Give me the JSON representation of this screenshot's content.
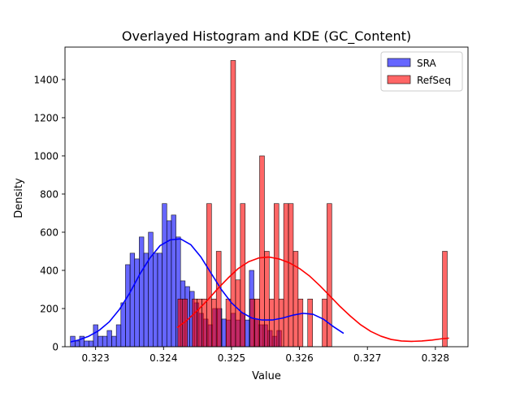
{
  "chart_data": {
    "type": "bar",
    "title": "Overlayed Histogram and KDE (GC_Content)",
    "xlabel": "Value",
    "ylabel": "Density",
    "xlim": [
      0.32255,
      0.32848
    ],
    "ylim": [
      0,
      1570
    ],
    "x_ticks": [
      0.323,
      0.324,
      0.325,
      0.326,
      0.327,
      0.328
    ],
    "x_tick_labels": [
      "0.323",
      "0.324",
      "0.325",
      "0.326",
      "0.327",
      "0.328"
    ],
    "y_ticks": [
      0,
      200,
      400,
      600,
      800,
      1000,
      1200,
      1400
    ],
    "y_tick_labels": [
      "0",
      "200",
      "400",
      "600",
      "800",
      "1000",
      "1200",
      "1400"
    ],
    "grid": false,
    "legend_position": "top-right",
    "series": [
      {
        "name": "SRA",
        "kind": "histogram",
        "color": "#0000ff",
        "bin_start": 0.32263,
        "bin_width": 6.75e-05,
        "values": [
          55,
          30,
          55,
          30,
          30,
          115,
          55,
          55,
          85,
          55,
          115,
          230,
          430,
          490,
          460,
          575,
          490,
          600,
          490,
          490,
          750,
          660,
          690,
          575,
          345,
          315,
          290,
          230,
          175,
          145,
          115,
          200,
          200,
          145,
          140,
          175,
          140,
          175,
          140,
          400,
          145,
          115,
          115,
          85,
          55,
          85
        ],
        "kde": {
          "color": "#0000ff",
          "x": [
            0.32263,
            0.32275,
            0.3229,
            0.32305,
            0.3232,
            0.32335,
            0.3235,
            0.32365,
            0.3238,
            0.32395,
            0.3241,
            0.32425,
            0.3244,
            0.32455,
            0.3247,
            0.32485,
            0.325,
            0.32515,
            0.3253,
            0.32545,
            0.3256,
            0.32575,
            0.3259,
            0.32605,
            0.3262,
            0.32635,
            0.3265,
            0.32665
          ],
          "y": [
            25,
            35,
            55,
            85,
            130,
            195,
            280,
            380,
            465,
            530,
            560,
            565,
            535,
            470,
            385,
            300,
            230,
            180,
            150,
            140,
            140,
            150,
            165,
            175,
            170,
            145,
            105,
            70
          ]
        }
      },
      {
        "name": "RefSeq",
        "kind": "histogram",
        "color": "#ff0000",
        "bin_start": 0.32421,
        "bin_width": 7.08e-05,
        "values": [
          250,
          250,
          0,
          250,
          250,
          250,
          750,
          250,
          500,
          0,
          250,
          1500,
          350,
          750,
          0,
          250,
          250,
          1000,
          500,
          250,
          750,
          250,
          750,
          750,
          500,
          250,
          0,
          250,
          0,
          0,
          250,
          750,
          0,
          0,
          0,
          0,
          0,
          0,
          0,
          0,
          0,
          0,
          0,
          0,
          0,
          0,
          0,
          0,
          0,
          0,
          0,
          0,
          0,
          0,
          0,
          500
        ],
        "kde": {
          "color": "#ff0000",
          "x": [
            0.3242,
            0.32435,
            0.3245,
            0.32465,
            0.3248,
            0.32495,
            0.3251,
            0.32525,
            0.3254,
            0.32555,
            0.3257,
            0.32585,
            0.326,
            0.32615,
            0.3263,
            0.32645,
            0.3266,
            0.32675,
            0.3269,
            0.32705,
            0.3272,
            0.32735,
            0.3275,
            0.32765,
            0.3278,
            0.32795,
            0.3281,
            0.3282
          ],
          "y": [
            100,
            140,
            190,
            245,
            305,
            360,
            410,
            445,
            465,
            470,
            460,
            440,
            410,
            370,
            320,
            265,
            210,
            160,
            115,
            80,
            55,
            38,
            30,
            28,
            30,
            35,
            42,
            45
          ]
        }
      }
    ],
    "legend": [
      {
        "label": "SRA",
        "color": "#0000ff"
      },
      {
        "label": "RefSeq",
        "color": "#ff0000"
      }
    ]
  }
}
